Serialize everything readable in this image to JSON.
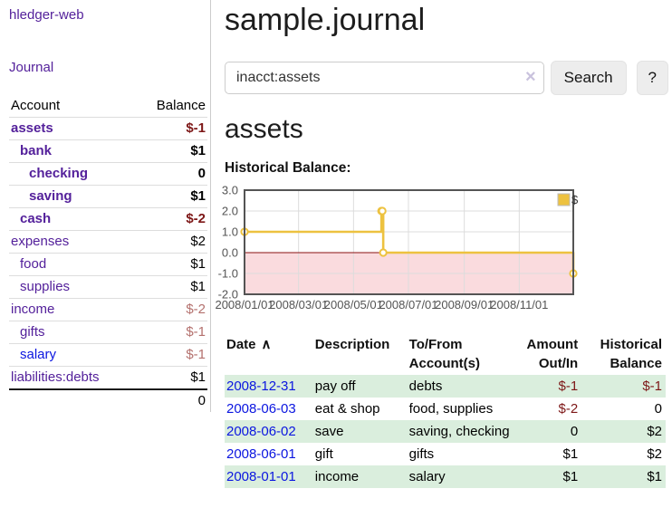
{
  "sidebar": {
    "brand": "hledger-web",
    "nav": {
      "journal": "Journal"
    },
    "accounts_table": {
      "headers": {
        "account": "Account",
        "balance": "Balance"
      },
      "rows": [
        {
          "name": "assets",
          "level": 0,
          "bold": true,
          "balance": "$-1",
          "balance_style": "negative-strong",
          "link_color": "purple"
        },
        {
          "name": "bank",
          "level": 1,
          "bold": true,
          "balance": "$1",
          "balance_style": "normal",
          "link_color": "purple"
        },
        {
          "name": "checking",
          "level": 2,
          "bold": true,
          "balance": "0",
          "balance_style": "normal",
          "link_color": "purple"
        },
        {
          "name": "saving",
          "level": 2,
          "bold": true,
          "balance": "$1",
          "balance_style": "normal",
          "link_color": "purple"
        },
        {
          "name": "cash",
          "level": 1,
          "bold": true,
          "balance": "$-2",
          "balance_style": "negative-strong",
          "link_color": "purple"
        },
        {
          "name": "expenses",
          "level": 0,
          "bold": false,
          "balance": "$2",
          "balance_style": "normal",
          "link_color": "purple"
        },
        {
          "name": "food",
          "level": 1,
          "bold": false,
          "balance": "$1",
          "balance_style": "normal",
          "link_color": "purple"
        },
        {
          "name": "supplies",
          "level": 1,
          "bold": false,
          "balance": "$1",
          "balance_style": "normal",
          "link_color": "purple"
        },
        {
          "name": "income",
          "level": 0,
          "bold": false,
          "balance": "$-2",
          "balance_style": "negative-soft",
          "link_color": "purple"
        },
        {
          "name": "gifts",
          "level": 1,
          "bold": false,
          "balance": "$-1",
          "balance_style": "negative-soft",
          "link_color": "purple"
        },
        {
          "name": "salary",
          "level": 1,
          "bold": false,
          "balance": "$-1",
          "balance_style": "negative-soft",
          "link_color": "blue"
        },
        {
          "name": "liabilities:debts",
          "level": 0,
          "bold": false,
          "balance": "$1",
          "balance_style": "normal",
          "link_color": "purple"
        }
      ],
      "total": "0"
    }
  },
  "header": {
    "title": "sample.journal"
  },
  "search": {
    "value": "inacct:assets",
    "clear_icon": "×",
    "button": "Search",
    "help_button": "?"
  },
  "account_page": {
    "title": "assets",
    "chart_label": "Historical Balance:"
  },
  "chart_data": {
    "type": "line",
    "steps": true,
    "title": "Historical Balance",
    "series": [
      {
        "name": "$",
        "color": "#EDC240",
        "points": [
          [
            "2008-01-01",
            1.0
          ],
          [
            "2008-06-01",
            2.0
          ],
          [
            "2008-06-02",
            2.0
          ],
          [
            "2008-06-03",
            0.0
          ],
          [
            "2008-12-31",
            -1.0
          ]
        ]
      }
    ],
    "ylim": [
      -2.0,
      3.0
    ],
    "yticks": [
      3.0,
      2.0,
      1.0,
      0.0,
      -1.0,
      -2.0
    ],
    "xticks": [
      "2008/01/01",
      "2008/03/01",
      "2008/05/01",
      "2008/07/01",
      "2008/09/01",
      "2008/11/01"
    ],
    "legend_position": "top-right",
    "grid": true,
    "negative_region_fill": "#fadbde",
    "zero_line_color": "#8b1111",
    "grid_color": "#dcdcdc",
    "border_color": "#545454",
    "label_color": "#545454"
  },
  "register": {
    "headers": {
      "date": "Date",
      "sort_icon": "∧",
      "description": "Description",
      "tofrom": "To/From Account(s)",
      "amount": "Amount Out/In",
      "historical": "Historical Balance"
    },
    "rows": [
      {
        "date": "2008-12-31",
        "description": "pay off",
        "tofrom": "debts",
        "amount": "$-1",
        "amount_neg": true,
        "historical": "$-1",
        "historical_neg": true,
        "stripe": true
      },
      {
        "date": "2008-06-03",
        "description": "eat & shop",
        "tofrom": "food, supplies",
        "amount": "$-2",
        "amount_neg": true,
        "historical": "0",
        "historical_neg": false,
        "stripe": false
      },
      {
        "date": "2008-06-02",
        "description": "save",
        "tofrom": "saving, checking",
        "amount": "0",
        "amount_neg": false,
        "historical": "$2",
        "historical_neg": false,
        "stripe": true
      },
      {
        "date": "2008-06-01",
        "description": "gift",
        "tofrom": "gifts",
        "amount": "$1",
        "amount_neg": false,
        "historical": "$2",
        "historical_neg": false,
        "stripe": false
      },
      {
        "date": "2008-01-01",
        "description": "income",
        "tofrom": "salary",
        "amount": "$1",
        "amount_neg": false,
        "historical": "$1",
        "historical_neg": false,
        "stripe": true
      }
    ]
  },
  "colors": {
    "link_purple": "#54219b",
    "link_blue": "#0b16e0",
    "negative_strong": "#7d1717",
    "negative_soft": "#b4716e",
    "row_stripe_green": "#daeedd",
    "series_gold": "#EDC240",
    "chart_negative_pink": "#fadbde"
  }
}
